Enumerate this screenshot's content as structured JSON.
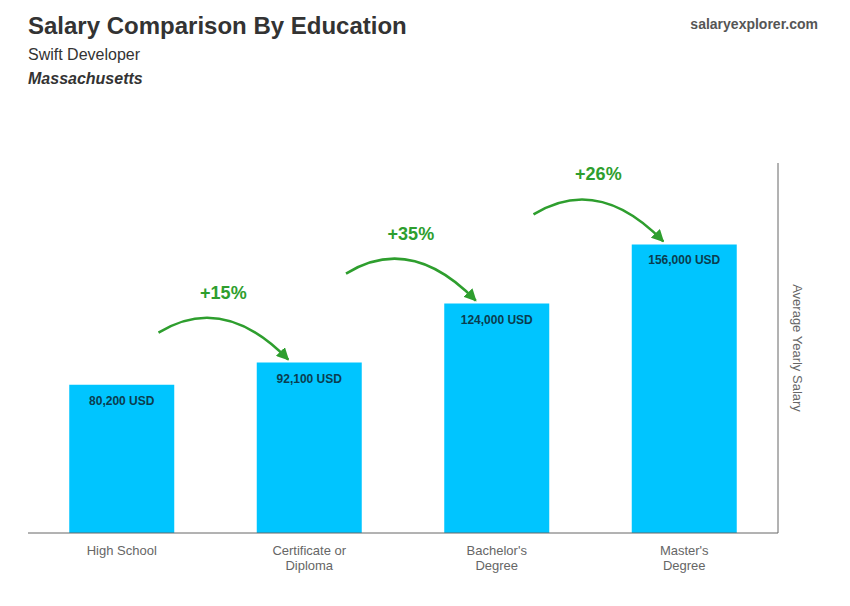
{
  "chart_data": {
    "type": "bar",
    "title": "Salary Comparison By Education",
    "subtitle": [
      "Swift Developer",
      "Massachusetts"
    ],
    "source": "salaryexplorer.com",
    "ylabel": "Average Yearly Salary",
    "categories": [
      "High School",
      "Certificate or\nDiploma",
      "Bachelor's\nDegree",
      "Master's\nDegree"
    ],
    "values": [
      80200,
      92100,
      124000,
      156000
    ],
    "value_labels": [
      "80,200 USD",
      "92,100 USD",
      "124,000 USD",
      "156,000 USD"
    ],
    "data_labels": true,
    "color": "#00C5FF",
    "ylim": [
      0,
      200000
    ],
    "tick_labels": "x",
    "grid": false,
    "annotations": [
      {
        "text": "+15%",
        "from": "High School",
        "to": "Certificate or\nDiploma",
        "color": "#2E9E2E"
      },
      {
        "text": "+35%",
        "from": "Certificate or\nDiploma",
        "to": "Bachelor's\nDegree",
        "color": "#2E9E2E"
      },
      {
        "text": "+26%",
        "from": "Bachelor's\nDegree",
        "to": "Master's\nDegree",
        "color": "#2E9E2E"
      }
    ]
  }
}
